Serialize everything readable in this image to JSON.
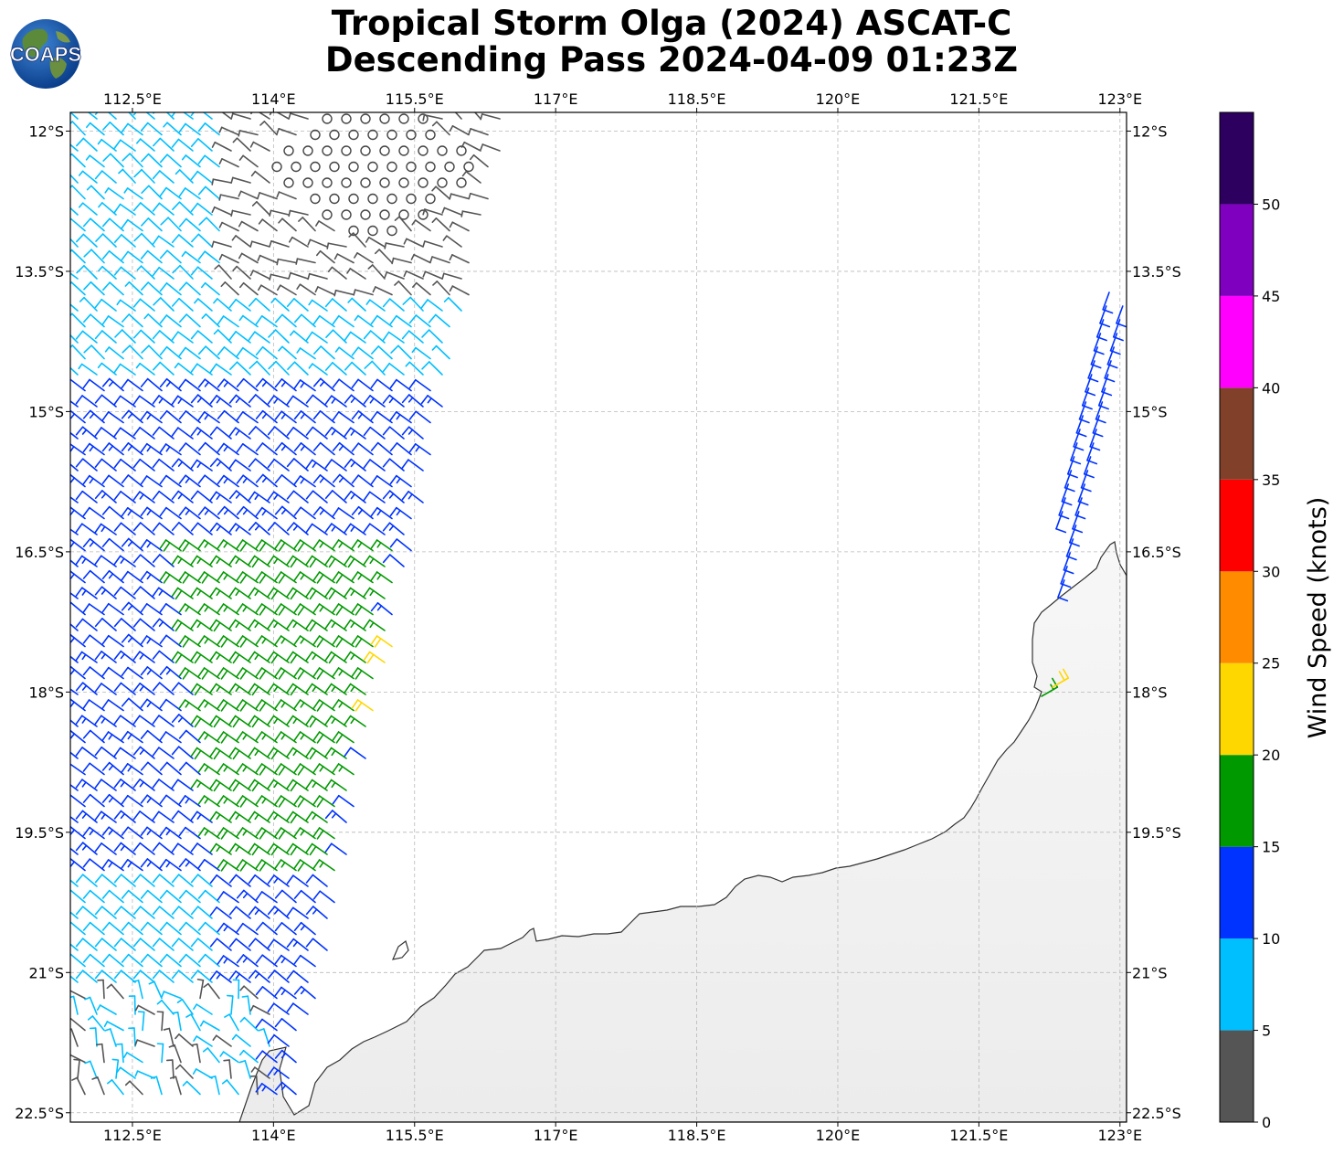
{
  "title": {
    "line1": "Tropical Storm Olga (2024) ASCAT-C",
    "line2": "Descending Pass 2024-04-09 01:23Z"
  },
  "logo": {
    "text": "COAPS",
    "icon": "globe-logo-icon"
  },
  "map": {
    "lon_labels": [
      "112.5°E",
      "114°E",
      "115.5°E",
      "117°E",
      "118.5°E",
      "120°E",
      "121.5°E",
      "123°E"
    ],
    "lat_labels": [
      "12°S",
      "13.5°S",
      "15°S",
      "16.5°S",
      "18°S",
      "19.5°S",
      "21°S",
      "22.5°S"
    ],
    "lon_values": [
      112.5,
      114,
      115.5,
      117,
      118.5,
      120,
      121.5,
      123
    ],
    "lat_values": [
      -12,
      -13.5,
      -15,
      -16.5,
      -18,
      -19.5,
      -21,
      -22.5
    ],
    "lon_range": [
      111.84,
      123.07
    ],
    "lat_range": [
      -22.6,
      -11.8
    ],
    "gridlines": true,
    "land_color": "#f4f4f4",
    "coast_color": "#333333"
  },
  "colorbar": {
    "title": "Wind Speed (knots)",
    "ticks": [
      "0",
      "5",
      "10",
      "15",
      "20",
      "25",
      "30",
      "35",
      "40",
      "45",
      "50"
    ],
    "bands": [
      {
        "min": 0,
        "max": 5,
        "color": "#555555"
      },
      {
        "min": 5,
        "max": 10,
        "color": "#00bfff"
      },
      {
        "min": 10,
        "max": 15,
        "color": "#0033ff"
      },
      {
        "min": 15,
        "max": 20,
        "color": "#009900"
      },
      {
        "min": 20,
        "max": 25,
        "color": "#ffd700"
      },
      {
        "min": 25,
        "max": 30,
        "color": "#ff8c00"
      },
      {
        "min": 30,
        "max": 35,
        "color": "#ff0000"
      },
      {
        "min": 35,
        "max": 40,
        "color": "#80402a"
      },
      {
        "min": 40,
        "max": 45,
        "color": "#ff00ff"
      },
      {
        "min": 45,
        "max": 50,
        "color": "#8000c0"
      },
      {
        "min": 50,
        "max": 55,
        "color": "#2d0060"
      }
    ]
  }
}
